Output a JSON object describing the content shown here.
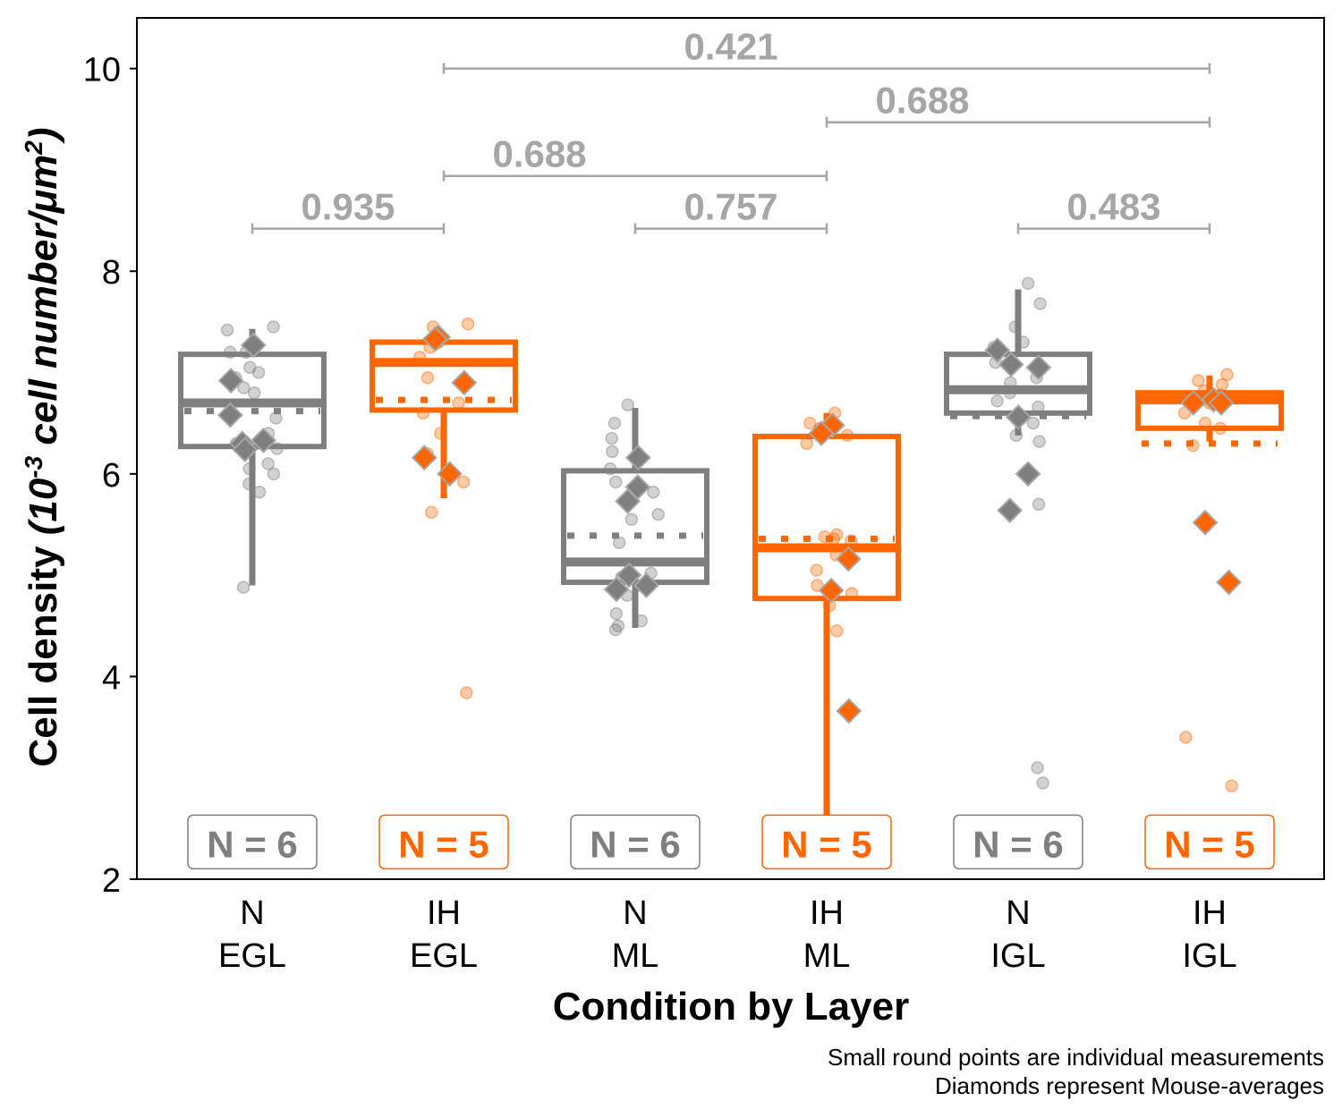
{
  "chart_data": {
    "type": "box",
    "xlabel": "Condition by Layer",
    "ylabel": {
      "main": "Cell density",
      "unit_prefix": "(10",
      "unit_exp": "-3",
      "unit_mid": " cell number/μm",
      "unit_exp2": "2",
      "unit_suffix": ")"
    },
    "ylim": [
      2,
      10.5
    ],
    "yticks": [
      "2",
      "4",
      "6",
      "8",
      "10"
    ],
    "ytick_values": [
      2,
      4,
      6,
      8,
      10
    ],
    "colors": {
      "N": "#7f7f7f",
      "IH": "#ff6600",
      "bracket": "#a6a6a6"
    },
    "categories": [
      {
        "line1": "N",
        "line2": "EGL",
        "condition": "N",
        "n_label": "N = 6",
        "box": {
          "q1": 6.27,
          "median": 6.7,
          "mean": 6.62,
          "q3": 7.18,
          "wlow": 4.9,
          "whigh": 7.43
        },
        "points": [
          7.42,
          7.45,
          7.2,
          7.25,
          7.2,
          7.05,
          7.0,
          6.95,
          6.85,
          6.8,
          6.55,
          6.4,
          6.3,
          6.25,
          6.1,
          6.05,
          6.0,
          5.9,
          5.82,
          4.88
        ],
        "diamonds": [
          7.27,
          6.92,
          6.58,
          6.33,
          6.3,
          6.24
        ]
      },
      {
        "line1": "IH",
        "line2": "EGL",
        "condition": "IH",
        "n_label": "N = 5",
        "box": {
          "q1": 6.63,
          "median": 7.1,
          "mean": 6.73,
          "q3": 7.3,
          "wlow": 5.76,
          "whigh": 7.38
        },
        "points": [
          7.48,
          7.45,
          7.3,
          7.25,
          7.15,
          6.95,
          6.7,
          6.6,
          6.4,
          6.2,
          5.92,
          5.62,
          3.84
        ],
        "diamonds": [
          7.35,
          7.33,
          6.9,
          6.16,
          6.0
        ]
      },
      {
        "line1": "N",
        "line2": "ML",
        "condition": "N",
        "n_label": "N = 6",
        "box": {
          "q1": 4.93,
          "median": 5.13,
          "mean": 5.39,
          "q3": 6.03,
          "wlow": 4.48,
          "whigh": 6.65
        },
        "points": [
          6.68,
          6.5,
          6.35,
          6.22,
          6.05,
          5.92,
          5.82,
          5.6,
          5.55,
          5.32,
          5.02,
          4.98,
          4.9,
          4.8,
          4.62,
          4.55,
          4.5,
          4.46
        ],
        "diamonds": [
          6.16,
          5.87,
          5.73,
          5.0,
          4.9,
          4.86
        ]
      },
      {
        "line1": "IH",
        "line2": "ML",
        "condition": "IH",
        "n_label": "N = 5",
        "box": {
          "q1": 4.77,
          "median": 5.27,
          "mean": 5.36,
          "q3": 6.37,
          "wlow": 2.52,
          "whigh": 6.6
        },
        "points": [
          6.6,
          6.5,
          6.45,
          6.38,
          6.3,
          5.4,
          5.38,
          5.36,
          5.34,
          5.2,
          5.05,
          4.9,
          4.82,
          4.7,
          4.45,
          2.52
        ],
        "diamonds": [
          6.48,
          6.4,
          5.16,
          4.85,
          3.66
        ]
      },
      {
        "line1": "N",
        "line2": "IGL",
        "condition": "N",
        "n_label": "N = 6",
        "box": {
          "q1": 6.6,
          "median": 6.83,
          "mean": 6.57,
          "q3": 7.18,
          "wlow": 6.38,
          "whigh": 7.82
        },
        "points": [
          7.88,
          7.68,
          7.45,
          7.3,
          7.25,
          7.1,
          6.95,
          6.9,
          6.8,
          6.72,
          6.66,
          6.5,
          6.38,
          6.32,
          5.7,
          3.1,
          2.95
        ],
        "diamonds": [
          7.22,
          7.08,
          7.05,
          6.56,
          6.0,
          5.64
        ]
      },
      {
        "line1": "IH",
        "line2": "IGL",
        "condition": "IH",
        "n_label": "N = 5",
        "box": {
          "q1": 6.45,
          "median": 6.73,
          "mean": 6.3,
          "q3": 6.8,
          "wlow": 6.32,
          "whigh": 6.97
        },
        "points": [
          6.98,
          6.92,
          6.88,
          6.82,
          6.78,
          6.7,
          6.6,
          6.5,
          6.45,
          6.28,
          3.4,
          2.92
        ],
        "diamonds": [
          6.73,
          6.7,
          6.7,
          5.52,
          4.93
        ]
      }
    ],
    "brackets": [
      {
        "from": 0,
        "to": 1,
        "y": 8.42,
        "label": "0.935"
      },
      {
        "from": 2,
        "to": 3,
        "y": 8.42,
        "label": "0.757"
      },
      {
        "from": 4,
        "to": 5,
        "y": 8.42,
        "label": "0.483"
      },
      {
        "from": 1,
        "to": 3,
        "y": 8.94,
        "label": "0.688"
      },
      {
        "from": 3,
        "to": 5,
        "y": 9.47,
        "label": "0.688"
      },
      {
        "from": 1,
        "to": 5,
        "y": 10.0,
        "label": "0.421"
      }
    ],
    "bracket_center": [
      0.5,
      2.5,
      4.5,
      1.5,
      3.5,
      2.5
    ],
    "n_label_y": 2.35
  },
  "caption": {
    "line1": "Small round points are individual measurements",
    "line2": "Diamonds represent Mouse-averages"
  }
}
